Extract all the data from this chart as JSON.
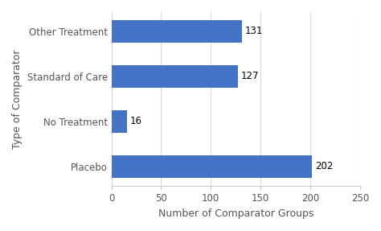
{
  "categories": [
    "Placebo",
    "No Treatment",
    "Standard of Care",
    "Other Treatment"
  ],
  "values": [
    202,
    16,
    127,
    131
  ],
  "bar_color": "#4472C4",
  "xlabel": "Number of Comparator Groups",
  "ylabel": "Type of Comparator",
  "xlim": [
    0,
    250
  ],
  "xticks": [
    0,
    50,
    100,
    150,
    200,
    250
  ],
  "background_color": "#ffffff",
  "grid_color": "#d9d9d9",
  "label_fontsize": 9,
  "tick_fontsize": 8.5,
  "value_fontsize": 8.5,
  "bar_height": 0.5
}
